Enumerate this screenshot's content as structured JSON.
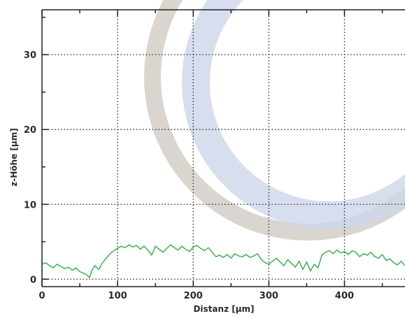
{
  "chart_data": {
    "type": "line",
    "title": "",
    "xlabel": "Distanz [µm]",
    "ylabel": "z-Höhe [µm]",
    "xlim": [
      0,
      480
    ],
    "ylim": [
      -1,
      36
    ],
    "xticks": [
      0,
      100,
      200,
      300,
      400
    ],
    "yticks": [
      0,
      10,
      20,
      30
    ],
    "grid": true,
    "colors": {
      "line": "#3fae55",
      "grid": "#333333",
      "axis": "#222222",
      "ring_outer": "#d3cec6",
      "ring_inner": "#cdd6ea"
    },
    "series": [
      {
        "x": [
          0,
          5,
          10,
          15,
          20,
          25,
          30,
          35,
          40,
          45,
          50,
          55,
          60,
          63,
          66,
          70,
          75,
          80,
          85,
          90,
          95,
          100,
          105,
          110,
          115,
          120,
          125,
          130,
          135,
          140,
          145,
          150,
          155,
          160,
          165,
          170,
          175,
          180,
          185,
          190,
          195,
          200,
          205,
          210,
          215,
          220,
          225,
          230,
          235,
          240,
          245,
          250,
          255,
          260,
          265,
          270,
          275,
          280,
          285,
          290,
          295,
          300,
          305,
          310,
          315,
          320,
          325,
          330,
          335,
          340,
          345,
          350,
          355,
          360,
          365,
          370,
          375,
          380,
          385,
          390,
          395,
          400,
          405,
          410,
          415,
          420,
          425,
          430,
          435,
          440,
          445,
          450,
          455,
          460,
          465,
          470,
          475,
          480
        ],
        "y": [
          2.0,
          2.2,
          1.8,
          1.5,
          2.0,
          1.7,
          1.4,
          1.6,
          1.2,
          1.5,
          1.0,
          0.8,
          0.5,
          0.2,
          1.2,
          1.8,
          1.3,
          2.2,
          2.8,
          3.4,
          3.8,
          4.1,
          4.4,
          4.2,
          4.6,
          4.3,
          4.5,
          4.0,
          4.4,
          3.9,
          3.2,
          4.4,
          4.0,
          3.6,
          4.1,
          4.6,
          4.2,
          3.9,
          4.4,
          4.0,
          3.7,
          4.3,
          4.5,
          4.1,
          3.8,
          4.2,
          3.6,
          3.0,
          3.2,
          2.9,
          3.3,
          2.8,
          3.4,
          3.1,
          3.0,
          3.3,
          2.9,
          3.1,
          3.4,
          2.6,
          2.2,
          2.0,
          2.4,
          2.8,
          2.3,
          1.8,
          2.6,
          2.1,
          1.6,
          2.4,
          1.3,
          2.3,
          1.1,
          2.0,
          1.5,
          3.2,
          3.6,
          3.8,
          3.4,
          3.9,
          3.5,
          3.7,
          3.3,
          3.8,
          3.6,
          3.0,
          3.4,
          3.2,
          3.6,
          3.0,
          2.8,
          3.3,
          2.5,
          2.7,
          2.2,
          1.9,
          2.4,
          1.8
        ]
      }
    ]
  }
}
